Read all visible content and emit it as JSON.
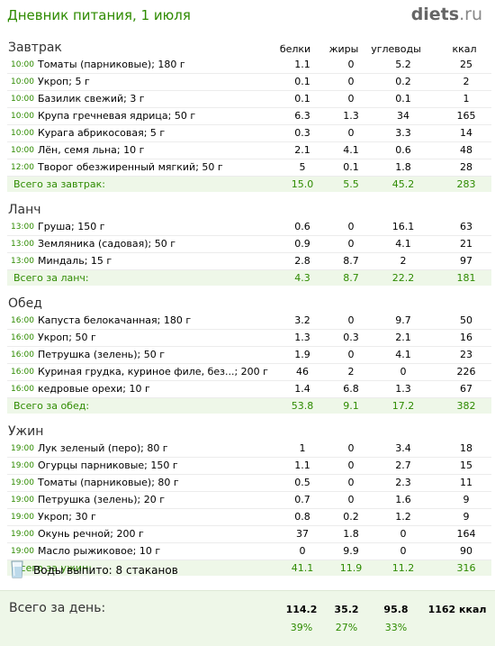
{
  "header": {
    "title": "Дневник питания, 1 июля",
    "logo_main": "diets",
    "logo_tld": ".ru"
  },
  "columns": {
    "protein": "белки",
    "fat": "жиры",
    "carbs": "углеводы",
    "kcal": "ккал"
  },
  "meals": [
    {
      "title": "Завтрак",
      "items": [
        {
          "time": "10:00",
          "food": "Томаты (парниковые); 180 г",
          "protein": "1.1",
          "fat": "0",
          "carbs": "5.2",
          "kcal": "25"
        },
        {
          "time": "10:00",
          "food": "Укроп; 5 г",
          "protein": "0.1",
          "fat": "0",
          "carbs": "0.2",
          "kcal": "2"
        },
        {
          "time": "10:00",
          "food": "Базилик свежий; 3 г",
          "protein": "0.1",
          "fat": "0",
          "carbs": "0.1",
          "kcal": "1"
        },
        {
          "time": "10:00",
          "food": "Крупа гречневая ядрица; 50 г",
          "protein": "6.3",
          "fat": "1.3",
          "carbs": "34",
          "kcal": "165"
        },
        {
          "time": "10:00",
          "food": "Курага абрикосовая; 5 г",
          "protein": "0.3",
          "fat": "0",
          "carbs": "3.3",
          "kcal": "14"
        },
        {
          "time": "10:00",
          "food": "Лён, семя льна; 10 г",
          "protein": "2.1",
          "fat": "4.1",
          "carbs": "0.6",
          "kcal": "48"
        },
        {
          "time": "12:00",
          "food": "Творог обезжиренный мягкий; 50 г",
          "protein": "5",
          "fat": "0.1",
          "carbs": "1.8",
          "kcal": "28"
        }
      ],
      "total": {
        "label": "Всего за завтрак:",
        "protein": "15.0",
        "fat": "5.5",
        "carbs": "45.2",
        "kcal": "283"
      }
    },
    {
      "title": "Ланч",
      "items": [
        {
          "time": "13:00",
          "food": "Груша; 150 г",
          "protein": "0.6",
          "fat": "0",
          "carbs": "16.1",
          "kcal": "63"
        },
        {
          "time": "13:00",
          "food": "Земляника (садовая); 50 г",
          "protein": "0.9",
          "fat": "0",
          "carbs": "4.1",
          "kcal": "21"
        },
        {
          "time": "13:00",
          "food": "Миндаль; 15 г",
          "protein": "2.8",
          "fat": "8.7",
          "carbs": "2",
          "kcal": "97"
        }
      ],
      "total": {
        "label": "Всего за ланч:",
        "protein": "4.3",
        "fat": "8.7",
        "carbs": "22.2",
        "kcal": "181"
      }
    },
    {
      "title": "Обед",
      "items": [
        {
          "time": "16:00",
          "food": "Капуста белокачанная; 180 г",
          "protein": "3.2",
          "fat": "0",
          "carbs": "9.7",
          "kcal": "50"
        },
        {
          "time": "16:00",
          "food": "Укроп; 50 г",
          "protein": "1.3",
          "fat": "0.3",
          "carbs": "2.1",
          "kcal": "16"
        },
        {
          "time": "16:00",
          "food": "Петрушка (зелень); 50 г",
          "protein": "1.9",
          "fat": "0",
          "carbs": "4.1",
          "kcal": "23"
        },
        {
          "time": "16:00",
          "food": "Куриная грудка, куриное филе, без...; 200 г",
          "protein": "46",
          "fat": "2",
          "carbs": "0",
          "kcal": "226"
        },
        {
          "time": "16:00",
          "food": "кедровые орехи; 10 г",
          "protein": "1.4",
          "fat": "6.8",
          "carbs": "1.3",
          "kcal": "67"
        }
      ],
      "total": {
        "label": "Всего за обед:",
        "protein": "53.8",
        "fat": "9.1",
        "carbs": "17.2",
        "kcal": "382"
      }
    },
    {
      "title": "Ужин",
      "items": [
        {
          "time": "19:00",
          "food": "Лук зеленый (перо); 80 г",
          "protein": "1",
          "fat": "0",
          "carbs": "3.4",
          "kcal": "18"
        },
        {
          "time": "19:00",
          "food": "Огурцы парниковые; 150 г",
          "protein": "1.1",
          "fat": "0",
          "carbs": "2.7",
          "kcal": "15"
        },
        {
          "time": "19:00",
          "food": "Томаты (парниковые); 80 г",
          "protein": "0.5",
          "fat": "0",
          "carbs": "2.3",
          "kcal": "11"
        },
        {
          "time": "19:00",
          "food": "Петрушка (зелень); 20 г",
          "protein": "0.7",
          "fat": "0",
          "carbs": "1.6",
          "kcal": "9"
        },
        {
          "time": "19:00",
          "food": "Укроп; 30 г",
          "protein": "0.8",
          "fat": "0.2",
          "carbs": "1.2",
          "kcal": "9"
        },
        {
          "time": "19:00",
          "food": "Окунь речной; 200 г",
          "protein": "37",
          "fat": "1.8",
          "carbs": "0",
          "kcal": "164"
        },
        {
          "time": "19:00",
          "food": "Масло рыжиковое; 10 г",
          "protein": "0",
          "fat": "9.9",
          "carbs": "0",
          "kcal": "90"
        }
      ],
      "total": {
        "label": "Всего за ужин:",
        "protein": "41.1",
        "fat": "11.9",
        "carbs": "11.2",
        "kcal": "316"
      }
    }
  ],
  "water": {
    "icon": "water-glass-icon",
    "label": "Воды выпито: 8 стаканов"
  },
  "day_total": {
    "label": "Всего за день:",
    "protein": "114.2",
    "fat": "35.2",
    "carbs": "95.8",
    "kcal": "1162 ккал",
    "protein_pct": "39%",
    "fat_pct": "27%",
    "carbs_pct": "33%"
  },
  "colors": {
    "accent_green": "#2e8b00",
    "total_bg": "#eef7e8"
  }
}
